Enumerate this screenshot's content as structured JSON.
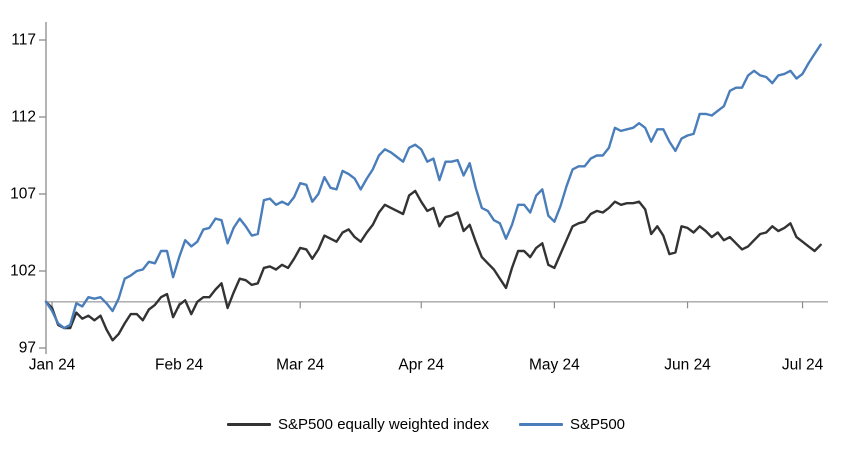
{
  "chart_data": {
    "type": "line",
    "title": "",
    "x_tick_labels": [
      "Jan 24",
      "Feb 24",
      "Mar 24",
      "Apr 24",
      "May 24",
      "Jun 24",
      "Jul 24"
    ],
    "x_tick_indices": [
      1,
      22,
      42,
      62,
      84,
      106,
      125
    ],
    "y_ticks": [
      97,
      102,
      107,
      112,
      117
    ],
    "ylim": [
      97,
      117.5
    ],
    "baseline_value": 100,
    "grid": false,
    "legend_position": "bottom-center",
    "colors": {
      "axis": "#8c8c8c",
      "baseline": "#a6a6a6",
      "labels": "#000000",
      "equal_weight_line": "#333333",
      "sp500_line": "#4a7ebb"
    },
    "series": [
      {
        "name": "S&P500 equally weighted index",
        "color": "#333333",
        "values": [
          100.0,
          99.6,
          98.5,
          98.3,
          98.3,
          99.3,
          98.9,
          99.1,
          98.8,
          99.1,
          98.2,
          97.5,
          97.9,
          98.6,
          99.2,
          99.2,
          98.8,
          99.5,
          99.8,
          100.3,
          100.5,
          99.0,
          99.8,
          100.1,
          99.2,
          100.0,
          100.3,
          100.3,
          100.8,
          101.2,
          99.6,
          100.6,
          101.5,
          101.4,
          101.1,
          101.2,
          102.2,
          102.3,
          102.1,
          102.4,
          102.2,
          102.8,
          103.5,
          103.4,
          102.8,
          103.4,
          104.3,
          104.1,
          103.9,
          104.5,
          104.7,
          104.2,
          103.9,
          104.5,
          105.0,
          105.8,
          106.3,
          106.1,
          105.9,
          105.7,
          106.9,
          107.2,
          106.5,
          105.9,
          106.1,
          104.9,
          105.5,
          105.6,
          105.8,
          104.6,
          105.0,
          103.9,
          102.9,
          102.5,
          102.1,
          101.5,
          100.9,
          102.2,
          103.3,
          103.3,
          102.9,
          103.5,
          103.8,
          102.4,
          102.2,
          103.1,
          104.0,
          104.9,
          105.1,
          105.2,
          105.7,
          105.9,
          105.8,
          106.1,
          106.5,
          106.3,
          106.4,
          106.4,
          106.5,
          106.0,
          104.4,
          104.9,
          104.3,
          103.1,
          103.2,
          104.9,
          104.8,
          104.5,
          104.9,
          104.6,
          104.2,
          104.5,
          104.0,
          104.2,
          103.8,
          103.4,
          103.6,
          104.0,
          104.4,
          104.5,
          104.9,
          104.6,
          104.8,
          105.1,
          104.2,
          103.9,
          103.6,
          103.3,
          103.7
        ]
      },
      {
        "name": "S&P500",
        "color": "#4a7ebb",
        "values": [
          100.0,
          99.4,
          98.6,
          98.3,
          98.5,
          99.9,
          99.7,
          100.3,
          100.2,
          100.3,
          99.9,
          99.4,
          100.2,
          101.5,
          101.7,
          102.0,
          102.1,
          102.6,
          102.5,
          103.3,
          103.3,
          101.6,
          102.9,
          104.0,
          103.6,
          103.9,
          104.7,
          104.8,
          105.4,
          105.3,
          103.8,
          104.8,
          105.4,
          104.9,
          104.3,
          104.4,
          106.6,
          106.7,
          106.3,
          106.5,
          106.3,
          106.8,
          107.7,
          107.6,
          106.5,
          107.0,
          108.1,
          107.4,
          107.3,
          108.5,
          108.3,
          108.0,
          107.3,
          108.0,
          108.6,
          109.5,
          109.9,
          109.7,
          109.4,
          109.1,
          110.0,
          110.2,
          109.9,
          109.1,
          109.3,
          107.9,
          109.1,
          109.1,
          109.2,
          108.2,
          109.0,
          107.4,
          106.1,
          105.9,
          105.3,
          105.1,
          104.1,
          105.0,
          106.3,
          106.3,
          105.8,
          106.9,
          107.3,
          105.6,
          105.2,
          106.2,
          107.5,
          108.6,
          108.8,
          108.8,
          109.3,
          109.5,
          109.5,
          110.0,
          111.3,
          111.1,
          111.2,
          111.3,
          111.6,
          111.3,
          110.4,
          111.2,
          111.2,
          110.4,
          109.8,
          110.6,
          110.8,
          110.9,
          112.2,
          112.2,
          112.1,
          112.4,
          112.7,
          113.7,
          113.9,
          113.9,
          114.7,
          115.0,
          114.7,
          114.6,
          114.2,
          114.7,
          114.8,
          115.0,
          114.5,
          114.8,
          115.5,
          116.1,
          116.7
        ]
      }
    ]
  }
}
